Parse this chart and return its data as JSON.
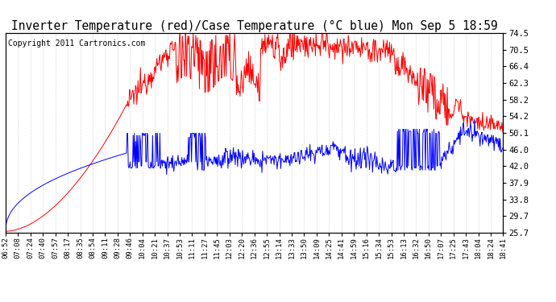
{
  "title": "Inverter Temperature (red)/Case Temperature (°C blue) Mon Sep 5 18:59",
  "copyright": "Copyright 2011 Cartronics.com",
  "ylabel_right": [
    "25.7",
    "29.7",
    "33.8",
    "37.9",
    "42.0",
    "46.0",
    "50.1",
    "54.2",
    "58.2",
    "62.3",
    "66.4",
    "70.5",
    "74.5"
  ],
  "yvals": [
    25.7,
    29.7,
    33.8,
    37.9,
    42.0,
    46.0,
    50.1,
    54.2,
    58.2,
    62.3,
    66.4,
    70.5,
    74.5
  ],
  "ylim": [
    25.7,
    74.5
  ],
  "x_labels": [
    "06:52",
    "07:08",
    "07:24",
    "07:40",
    "07:57",
    "08:17",
    "08:35",
    "08:54",
    "09:11",
    "09:28",
    "09:46",
    "10:04",
    "10:21",
    "10:37",
    "10:53",
    "11:11",
    "11:27",
    "11:45",
    "12:03",
    "12:20",
    "12:36",
    "12:55",
    "13:14",
    "13:33",
    "13:50",
    "14:09",
    "14:25",
    "14:41",
    "14:59",
    "15:16",
    "15:34",
    "15:53",
    "16:13",
    "16:32",
    "16:50",
    "17:07",
    "17:25",
    "17:43",
    "18:04",
    "18:24",
    "18:41"
  ],
  "bg_color": "#ffffff",
  "plot_bg": "#ffffff",
  "grid_color": "#bbbbbb",
  "red_color": "#ff0000",
  "blue_color": "#0000ff",
  "title_fontsize": 10.5,
  "copyright_fontsize": 7
}
